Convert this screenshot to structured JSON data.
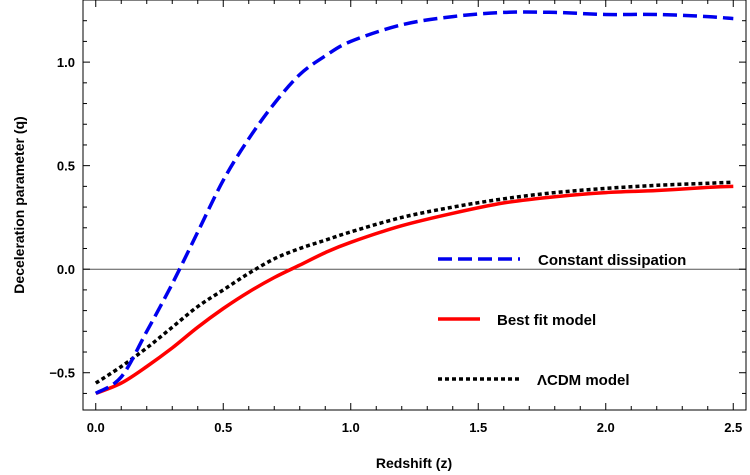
{
  "chart_data": {
    "type": "line",
    "xlabel": "Redshift (z)",
    "ylabel": "Deceleration parameter (q)",
    "xlim": [
      -0.05,
      2.55
    ],
    "ylim": [
      -0.68,
      1.3
    ],
    "x_ticks": [
      0.0,
      0.5,
      1.0,
      1.5,
      2.0,
      2.5
    ],
    "x_tick_labels": [
      "0.0",
      "0.5",
      "1.0",
      "1.5",
      "2.0",
      "2.5"
    ],
    "y_ticks": [
      -0.5,
      0.0,
      0.5,
      1.0
    ],
    "y_tick_labels": [
      "−0.5",
      "0.0",
      "0.5",
      "1.0"
    ],
    "zero_line": true,
    "grid": false,
    "legend_position": "right",
    "series": [
      {
        "name": "Constant dissipation",
        "color": "#0000ee",
        "dash": "dashed",
        "points": [
          [
            0.0,
            -0.6
          ],
          [
            0.1,
            -0.52
          ],
          [
            0.2,
            -0.3
          ],
          [
            0.3,
            -0.07
          ],
          [
            0.4,
            0.18
          ],
          [
            0.5,
            0.43
          ],
          [
            0.6,
            0.63
          ],
          [
            0.7,
            0.8
          ],
          [
            0.8,
            0.94
          ],
          [
            0.9,
            1.03
          ],
          [
            1.0,
            1.1
          ],
          [
            1.2,
            1.18
          ],
          [
            1.4,
            1.22
          ],
          [
            1.6,
            1.24
          ],
          [
            1.8,
            1.24
          ],
          [
            2.0,
            1.23
          ],
          [
            2.2,
            1.23
          ],
          [
            2.4,
            1.22
          ],
          [
            2.5,
            1.21
          ]
        ]
      },
      {
        "name": "Best fit model",
        "color": "#ff0000",
        "dash": "solid",
        "points": [
          [
            0.0,
            -0.6
          ],
          [
            0.1,
            -0.55
          ],
          [
            0.2,
            -0.47
          ],
          [
            0.3,
            -0.38
          ],
          [
            0.4,
            -0.28
          ],
          [
            0.5,
            -0.19
          ],
          [
            0.6,
            -0.11
          ],
          [
            0.7,
            -0.04
          ],
          [
            0.8,
            0.02
          ],
          [
            0.9,
            0.08
          ],
          [
            1.0,
            0.13
          ],
          [
            1.2,
            0.21
          ],
          [
            1.4,
            0.27
          ],
          [
            1.6,
            0.32
          ],
          [
            1.8,
            0.35
          ],
          [
            2.0,
            0.37
          ],
          [
            2.2,
            0.38
          ],
          [
            2.4,
            0.395
          ],
          [
            2.5,
            0.4
          ]
        ]
      },
      {
        "name": "ΛCDM model",
        "color": "#000000",
        "dash": "dotted",
        "points": [
          [
            0.0,
            -0.55
          ],
          [
            0.1,
            -0.47
          ],
          [
            0.2,
            -0.38
          ],
          [
            0.3,
            -0.28
          ],
          [
            0.4,
            -0.18
          ],
          [
            0.5,
            -0.1
          ],
          [
            0.6,
            -0.02
          ],
          [
            0.7,
            0.05
          ],
          [
            0.8,
            0.1
          ],
          [
            0.9,
            0.14
          ],
          [
            1.0,
            0.18
          ],
          [
            1.2,
            0.25
          ],
          [
            1.4,
            0.3
          ],
          [
            1.6,
            0.34
          ],
          [
            1.8,
            0.37
          ],
          [
            2.0,
            0.39
          ],
          [
            2.2,
            0.405
          ],
          [
            2.4,
            0.415
          ],
          [
            2.5,
            0.42
          ]
        ]
      }
    ]
  }
}
